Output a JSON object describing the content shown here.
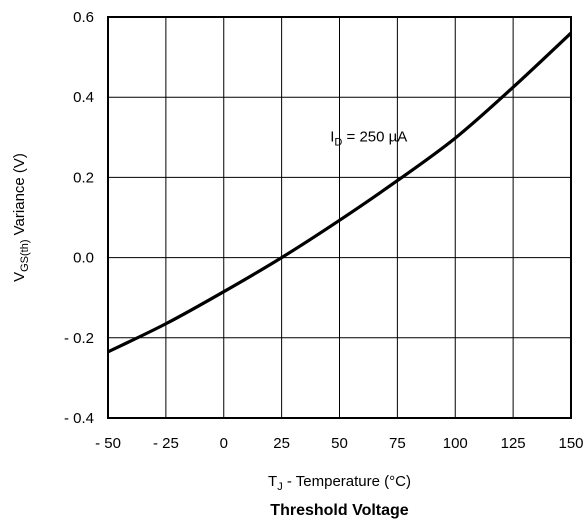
{
  "chart_data": {
    "type": "line",
    "x_tick_labels": [
      "- 50",
      "- 25",
      "0",
      "25",
      "50",
      "75",
      "100",
      "125",
      "150"
    ],
    "y_tick_labels": [
      "- 0.4",
      "- 0.2",
      "0.0",
      "0.2",
      "0.4",
      "0.6"
    ],
    "x_ticks": [
      -50,
      -25,
      0,
      25,
      50,
      75,
      100,
      125,
      150
    ],
    "y_ticks": [
      -0.4,
      -0.2,
      0.0,
      0.2,
      0.4,
      0.6
    ],
    "xlim": [
      -50,
      150
    ],
    "ylim": [
      -0.4,
      0.6
    ],
    "grid": true,
    "xlabel": {
      "main": "T",
      "sub": "J",
      "rest": " - Temperature (°C)"
    },
    "ylabel": {
      "main": "V",
      "sub": "GS(th)",
      "rest": "  Variance (V)"
    },
    "caption": "Threshold Voltage",
    "annotation": {
      "main": "I",
      "sub": "D",
      "rest": " = 250  µA",
      "x": 46,
      "y": 0.29
    },
    "series": [
      {
        "color": "#000000",
        "x": [
          -50,
          -25,
          0,
          25,
          50,
          75,
          100,
          125,
          150
        ],
        "y": [
          -0.235,
          -0.165,
          -0.085,
          0.0,
          0.093,
          0.192,
          0.298,
          0.425,
          0.56
        ]
      }
    ]
  }
}
